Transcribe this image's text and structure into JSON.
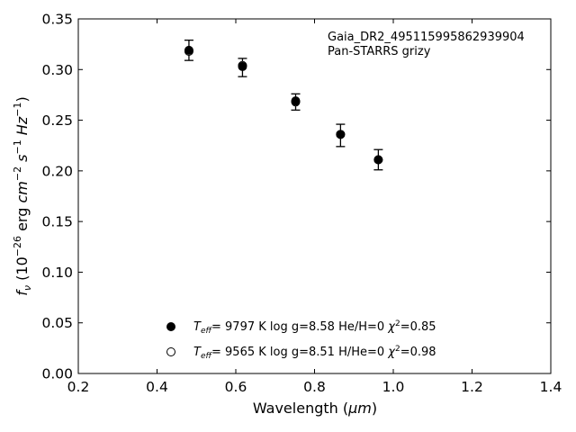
{
  "chart_data": {
    "type": "scatter",
    "xlabel": "Wavelength (",
    "xlabel_unit": "μm",
    "xlabel_close": ")",
    "ylabel_prefix": "f",
    "ylabel_sub": "ν",
    "ylabel_unit_open": " (10",
    "ylabel_exp1": "−26",
    "ylabel_erg": " erg ",
    "ylabel_cm": "cm",
    "ylabel_exp2": "−2",
    "ylabel_s": " s",
    "ylabel_exp3": "−1",
    "ylabel_hz": " Hz",
    "ylabel_exp4": "−1",
    "ylabel_close": ")",
    "xlim": [
      0.2,
      1.4
    ],
    "ylim": [
      0.0,
      0.35
    ],
    "x_ticks": [
      "0.2",
      "0.4",
      "0.6",
      "0.8",
      "1.0",
      "1.2",
      "1.4"
    ],
    "x_tick_values": [
      0.2,
      0.4,
      0.6,
      0.8,
      1.0,
      1.2,
      1.4
    ],
    "y_ticks": [
      "0.00",
      "0.05",
      "0.10",
      "0.15",
      "0.20",
      "0.25",
      "0.30",
      "0.35"
    ],
    "y_tick_values": [
      0.0,
      0.05,
      0.1,
      0.15,
      0.2,
      0.25,
      0.3,
      0.35
    ],
    "grid": false,
    "annotation": {
      "line1": "Gaia_DR2_495115995862939904",
      "line2": "Pan-STARRS grizy"
    },
    "observed": {
      "x": [
        0.481,
        0.617,
        0.752,
        0.866,
        0.962
      ],
      "y": [
        0.319,
        0.302,
        0.268,
        0.235,
        0.211
      ],
      "err": [
        0.01,
        0.009,
        0.008,
        0.011,
        0.01
      ]
    },
    "series": [
      {
        "marker": "filled",
        "x": [
          0.481,
          0.617,
          0.752,
          0.866,
          0.962
        ],
        "y": [
          0.319,
          0.303,
          0.269,
          0.236,
          0.211
        ],
        "legend": {
          "teff_sym": "T",
          "teff_sub": "eff",
          "eq": "=  9797 K  log g=8.58  He/H=0  ",
          "chi": "χ",
          "chi_sup": "2",
          "chi_val": "=0.85"
        }
      },
      {
        "marker": "open",
        "x": [
          0.481,
          0.617,
          0.752,
          0.866,
          0.962
        ],
        "y": [
          0.318,
          0.304,
          0.268,
          0.236,
          0.211
        ],
        "legend": {
          "teff_sym": "T",
          "teff_sub": "eff",
          "eq": "=  9565 K  log g=8.51  H/He=0  ",
          "chi": "χ",
          "chi_sup": "2",
          "chi_val": "=0.98"
        }
      }
    ],
    "legend_position": "bottom-center"
  }
}
